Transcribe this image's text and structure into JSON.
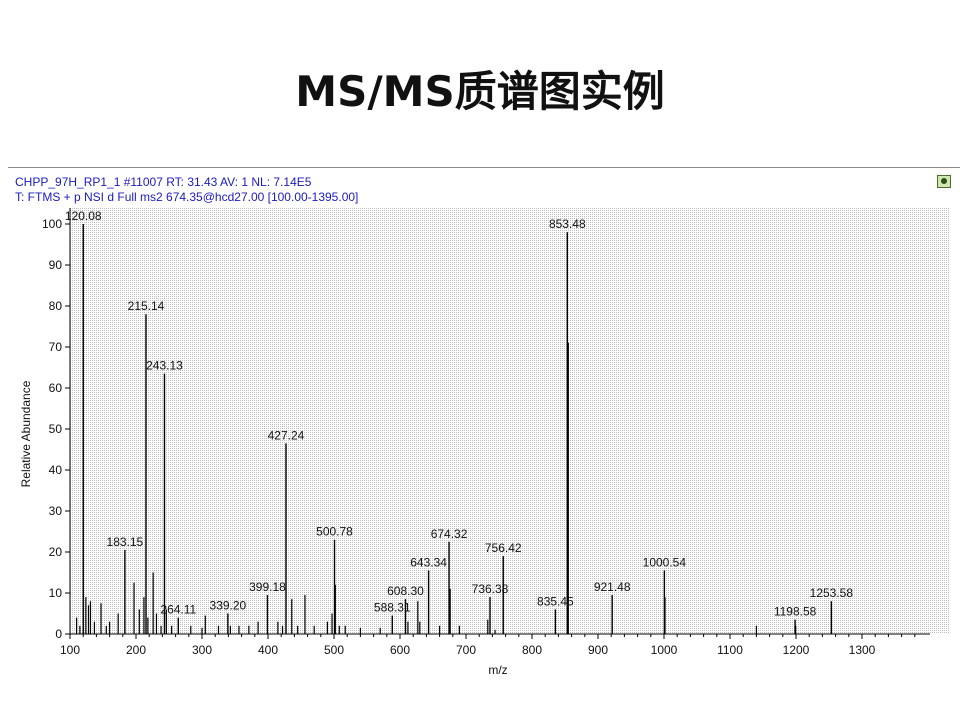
{
  "slide": {
    "title": "MS/MS质谱图实例"
  },
  "header": {
    "line1": "CHPP_97H_RP1_1 #11007   RT:  31.43   AV:  1   NL:  7.14E5",
    "line2": "T:  FTMS + p NSI d Full ms2 674.35@hcd27.00 [100.00-1395.00]"
  },
  "chart_data": {
    "type": "bar",
    "xlabel": "m/z",
    "ylabel": "Relative Abundance",
    "xlim": [
      100,
      1395
    ],
    "ylim": [
      0,
      100
    ],
    "xticks": [
      100,
      200,
      300,
      400,
      500,
      600,
      700,
      800,
      900,
      1000,
      1100,
      1200,
      1300
    ],
    "yticks": [
      0,
      10,
      20,
      30,
      40,
      50,
      60,
      70,
      80,
      90,
      100
    ],
    "grid": true,
    "labeled_peaks": [
      {
        "mz": 120.08,
        "intensity": 100,
        "label": "120.08"
      },
      {
        "mz": 183.15,
        "intensity": 20.5,
        "label": "183.15"
      },
      {
        "mz": 215.14,
        "intensity": 78,
        "label": "215.14"
      },
      {
        "mz": 243.13,
        "intensity": 63.5,
        "label": "243.13"
      },
      {
        "mz": 264.11,
        "intensity": 4,
        "label": "264.11"
      },
      {
        "mz": 339.2,
        "intensity": 5,
        "label": "339.20"
      },
      {
        "mz": 399.18,
        "intensity": 9.5,
        "label": "399.18"
      },
      {
        "mz": 427.24,
        "intensity": 46.5,
        "label": "427.24"
      },
      {
        "mz": 500.78,
        "intensity": 23,
        "label": "500.78"
      },
      {
        "mz": 588.31,
        "intensity": 4.5,
        "label": "588.31"
      },
      {
        "mz": 608.3,
        "intensity": 8.5,
        "label": "608.30"
      },
      {
        "mz": 643.34,
        "intensity": 15.5,
        "label": "643.34"
      },
      {
        "mz": 674.32,
        "intensity": 22.5,
        "label": "674.32"
      },
      {
        "mz": 736.38,
        "intensity": 9,
        "label": "736.38"
      },
      {
        "mz": 756.42,
        "intensity": 19,
        "label": "756.42"
      },
      {
        "mz": 835.45,
        "intensity": 6,
        "label": "835.45"
      },
      {
        "mz": 853.48,
        "intensity": 98,
        "label": "853.48"
      },
      {
        "mz": 921.48,
        "intensity": 9.5,
        "label": "921.48"
      },
      {
        "mz": 1000.54,
        "intensity": 15.5,
        "label": "1000.54"
      },
      {
        "mz": 1198.58,
        "intensity": 3.5,
        "label": "1198.58"
      },
      {
        "mz": 1253.58,
        "intensity": 8,
        "label": "1253.58"
      }
    ],
    "minor_peaks": [
      {
        "mz": 110,
        "intensity": 4
      },
      {
        "mz": 115,
        "intensity": 2
      },
      {
        "mz": 124,
        "intensity": 9
      },
      {
        "mz": 128,
        "intensity": 7
      },
      {
        "mz": 131,
        "intensity": 8
      },
      {
        "mz": 137,
        "intensity": 3
      },
      {
        "mz": 147,
        "intensity": 7.5
      },
      {
        "mz": 155,
        "intensity": 2
      },
      {
        "mz": 160,
        "intensity": 3
      },
      {
        "mz": 173,
        "intensity": 5
      },
      {
        "mz": 197,
        "intensity": 12.5
      },
      {
        "mz": 205,
        "intensity": 6
      },
      {
        "mz": 212,
        "intensity": 9
      },
      {
        "mz": 218,
        "intensity": 4
      },
      {
        "mz": 226,
        "intensity": 15
      },
      {
        "mz": 231,
        "intensity": 5
      },
      {
        "mz": 238,
        "intensity": 2
      },
      {
        "mz": 246,
        "intensity": 6
      },
      {
        "mz": 254,
        "intensity": 2
      },
      {
        "mz": 283,
        "intensity": 2
      },
      {
        "mz": 300,
        "intensity": 1.5
      },
      {
        "mz": 305,
        "intensity": 4.5
      },
      {
        "mz": 325,
        "intensity": 2
      },
      {
        "mz": 343,
        "intensity": 2
      },
      {
        "mz": 356,
        "intensity": 2
      },
      {
        "mz": 371,
        "intensity": 2
      },
      {
        "mz": 385,
        "intensity": 3
      },
      {
        "mz": 415,
        "intensity": 3
      },
      {
        "mz": 422,
        "intensity": 2
      },
      {
        "mz": 436,
        "intensity": 8.5
      },
      {
        "mz": 445,
        "intensity": 2
      },
      {
        "mz": 456,
        "intensity": 9.5
      },
      {
        "mz": 470,
        "intensity": 2
      },
      {
        "mz": 490,
        "intensity": 3
      },
      {
        "mz": 497,
        "intensity": 5
      },
      {
        "mz": 502,
        "intensity": 12
      },
      {
        "mz": 508,
        "intensity": 2
      },
      {
        "mz": 517,
        "intensity": 2
      },
      {
        "mz": 540,
        "intensity": 1.5
      },
      {
        "mz": 570,
        "intensity": 1.5
      },
      {
        "mz": 612,
        "intensity": 3
      },
      {
        "mz": 627,
        "intensity": 8
      },
      {
        "mz": 630,
        "intensity": 3
      },
      {
        "mz": 660,
        "intensity": 2
      },
      {
        "mz": 676,
        "intensity": 11
      },
      {
        "mz": 690,
        "intensity": 2
      },
      {
        "mz": 733,
        "intensity": 3.5
      },
      {
        "mz": 744,
        "intensity": 1
      },
      {
        "mz": 855,
        "intensity": 71
      },
      {
        "mz": 1001.5,
        "intensity": 9
      },
      {
        "mz": 1140,
        "intensity": 2
      },
      {
        "mz": 1199.5,
        "intensity": 2
      }
    ]
  }
}
